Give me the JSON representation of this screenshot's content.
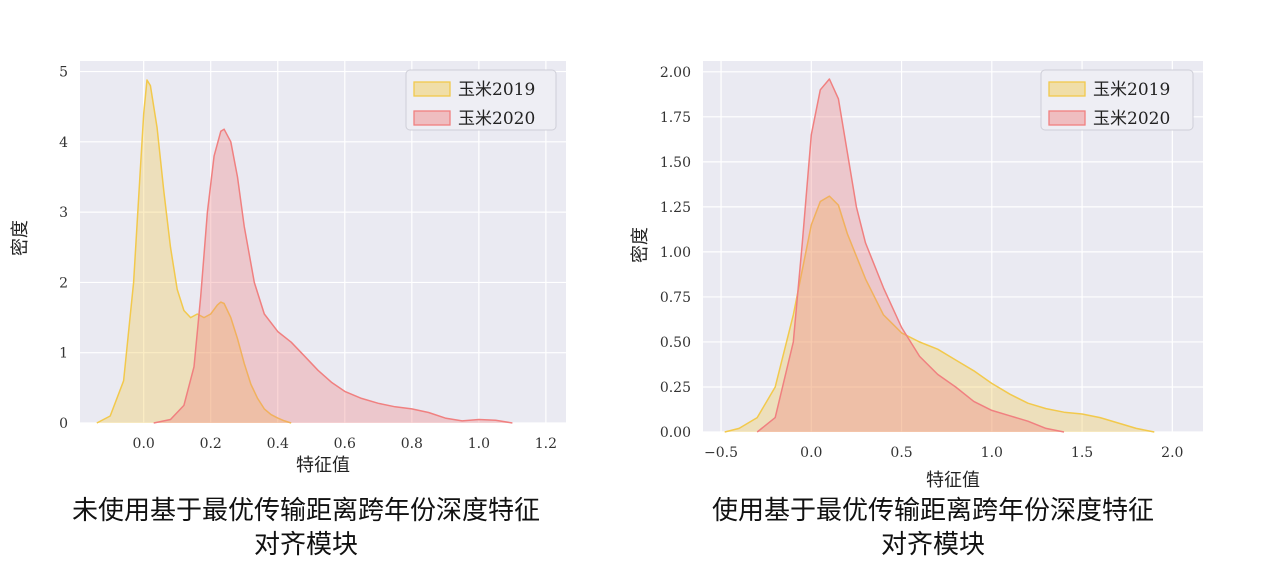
{
  "chart_data": [
    {
      "type": "area",
      "title": "",
      "xlabel": "特征值",
      "ylabel": "密度",
      "xlim": [
        -0.19,
        1.26
      ],
      "ylim": [
        0,
        5.15
      ],
      "xticks": [
        "0.0",
        "0.2",
        "0.4",
        "0.6",
        "0.8",
        "1.0",
        "1.2"
      ],
      "xtick_values": [
        0,
        0.2,
        0.4,
        0.6,
        0.8,
        1.0,
        1.2
      ],
      "yticks": [
        "0",
        "1",
        "2",
        "3",
        "4",
        "5"
      ],
      "ytick_values": [
        0,
        1,
        2,
        3,
        4,
        5
      ],
      "grid": true,
      "legend_position": "top-right",
      "caption": [
        "未使用基于最优传输距离跨年份深度特征",
        "对齐模块"
      ],
      "series": [
        {
          "name": "玉米2019",
          "color": "#f2c94c",
          "x": [
            -0.14,
            -0.1,
            -0.06,
            -0.03,
            -0.01,
            0.0,
            0.01,
            0.02,
            0.04,
            0.06,
            0.08,
            0.1,
            0.12,
            0.14,
            0.16,
            0.18,
            0.2,
            0.22,
            0.23,
            0.24,
            0.26,
            0.28,
            0.3,
            0.32,
            0.34,
            0.36,
            0.38,
            0.4,
            0.42,
            0.44
          ],
          "y": [
            0.0,
            0.1,
            0.6,
            2.0,
            3.6,
            4.4,
            4.88,
            4.8,
            4.2,
            3.3,
            2.5,
            1.9,
            1.6,
            1.5,
            1.55,
            1.5,
            1.55,
            1.68,
            1.72,
            1.7,
            1.5,
            1.2,
            0.85,
            0.55,
            0.35,
            0.2,
            0.12,
            0.07,
            0.03,
            0.0
          ]
        },
        {
          "name": "玉米2020",
          "color": "#f08080",
          "x": [
            0.03,
            0.08,
            0.12,
            0.15,
            0.17,
            0.19,
            0.21,
            0.23,
            0.24,
            0.26,
            0.28,
            0.3,
            0.33,
            0.36,
            0.4,
            0.44,
            0.48,
            0.52,
            0.56,
            0.6,
            0.65,
            0.7,
            0.75,
            0.8,
            0.85,
            0.9,
            0.95,
            1.0,
            1.05,
            1.1
          ],
          "y": [
            0.0,
            0.05,
            0.25,
            0.8,
            1.8,
            3.0,
            3.8,
            4.15,
            4.18,
            4.0,
            3.5,
            2.8,
            2.0,
            1.55,
            1.3,
            1.15,
            0.95,
            0.75,
            0.58,
            0.45,
            0.35,
            0.28,
            0.23,
            0.2,
            0.15,
            0.07,
            0.03,
            0.05,
            0.04,
            0.0
          ]
        }
      ]
    },
    {
      "type": "area",
      "title": "",
      "xlabel": "特征值",
      "ylabel": "密度",
      "xlim": [
        -0.6,
        2.17
      ],
      "ylim": [
        0,
        2.06
      ],
      "xticks": [
        "−0.5",
        "0.0",
        "0.5",
        "1.0",
        "1.5",
        "2.0"
      ],
      "xtick_values": [
        -0.5,
        0,
        0.5,
        1.0,
        1.5,
        2.0
      ],
      "yticks": [
        "0.00",
        "0.25",
        "0.50",
        "0.75",
        "1.00",
        "1.25",
        "1.50",
        "1.75",
        "2.00"
      ],
      "ytick_values": [
        0,
        0.25,
        0.5,
        0.75,
        1.0,
        1.25,
        1.5,
        1.75,
        2.0
      ],
      "grid": true,
      "legend_position": "top-right",
      "caption": [
        "使用基于最优传输距离跨年份深度特征",
        "对齐模块"
      ],
      "series": [
        {
          "name": "玉米2019",
          "color": "#f2c94c",
          "x": [
            -0.48,
            -0.4,
            -0.3,
            -0.2,
            -0.1,
            0.0,
            0.05,
            0.1,
            0.15,
            0.2,
            0.3,
            0.4,
            0.5,
            0.6,
            0.7,
            0.8,
            0.9,
            1.0,
            1.1,
            1.2,
            1.3,
            1.4,
            1.5,
            1.6,
            1.7,
            1.8,
            1.9
          ],
          "y": [
            0.0,
            0.02,
            0.08,
            0.25,
            0.65,
            1.15,
            1.28,
            1.31,
            1.26,
            1.1,
            0.85,
            0.65,
            0.55,
            0.5,
            0.46,
            0.4,
            0.34,
            0.27,
            0.21,
            0.16,
            0.13,
            0.11,
            0.1,
            0.08,
            0.05,
            0.02,
            0.0
          ]
        },
        {
          "name": "玉米2020",
          "color": "#f08080",
          "x": [
            -0.3,
            -0.2,
            -0.1,
            -0.05,
            0.0,
            0.05,
            0.1,
            0.15,
            0.2,
            0.25,
            0.3,
            0.4,
            0.5,
            0.6,
            0.7,
            0.8,
            0.9,
            1.0,
            1.1,
            1.2,
            1.3,
            1.4
          ],
          "y": [
            0.0,
            0.08,
            0.5,
            1.05,
            1.65,
            1.9,
            1.96,
            1.85,
            1.55,
            1.25,
            1.05,
            0.8,
            0.58,
            0.42,
            0.32,
            0.25,
            0.17,
            0.12,
            0.09,
            0.06,
            0.02,
            0.0
          ]
        }
      ]
    }
  ]
}
